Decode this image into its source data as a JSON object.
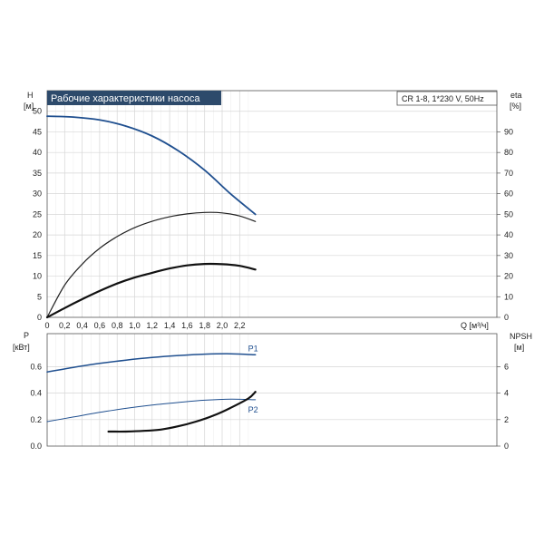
{
  "chart_data": [
    {
      "type": "line",
      "title": "Рабочие характеристики насоса",
      "model_label": "CR 1-8, 1*230 V, 50Hz",
      "xlabel": "Q [м³/ч]",
      "ylabel_left": "H",
      "ylabel_left_unit": "[м]",
      "ylabel_right": "eta",
      "ylabel_right_unit": "[%]",
      "xlim": [
        0,
        2.4
      ],
      "ylim_left": [
        0,
        55
      ],
      "ylim_right": [
        0,
        110
      ],
      "x_ticks": [
        "0",
        "0,2",
        "0,4",
        "0,6",
        "0,8",
        "1,0",
        "1,2",
        "1,4",
        "1,6",
        "1,8",
        "2,0",
        "2,2"
      ],
      "y_ticks_left": [
        "0",
        "5",
        "10",
        "15",
        "20",
        "25",
        "30",
        "35",
        "40",
        "45",
        "50"
      ],
      "y_ticks_right": [
        "0",
        "10",
        "20",
        "30",
        "40",
        "50",
        "60",
        "70",
        "80",
        "90"
      ],
      "grid": true,
      "series": [
        {
          "axis": "left",
          "color": "#1f4f8f",
          "x": [
            0,
            0.3,
            0.6,
            0.9,
            1.2,
            1.5,
            1.8,
            2.1,
            2.4
          ],
          "y": [
            48.8,
            48.6,
            47.9,
            46.4,
            44.0,
            40.4,
            35.7,
            29.9,
            25.0
          ]
        },
        {
          "axis": "right",
          "color": "#222222",
          "x": [
            0,
            0.2,
            0.4,
            0.6,
            0.8,
            1.0,
            1.2,
            1.4,
            1.6,
            1.8,
            2.0,
            2.2,
            2.4
          ],
          "y": [
            0,
            15.6,
            25.8,
            33.5,
            39.2,
            43.5,
            46.6,
            48.8,
            50.2,
            50.9,
            50.7,
            49.2,
            46.5
          ]
        },
        {
          "axis": "right",
          "color": "#111111",
          "x": [
            0,
            0.2,
            0.4,
            0.6,
            0.8,
            1.0,
            1.2,
            1.4,
            1.6,
            1.8,
            2.0,
            2.2,
            2.4
          ],
          "y": [
            0,
            4.5,
            8.8,
            12.8,
            16.4,
            19.3,
            21.6,
            23.7,
            25.2,
            25.9,
            25.8,
            25.0,
            23.2
          ]
        }
      ]
    },
    {
      "type": "line",
      "xlim": [
        0,
        2.4
      ],
      "ylabel_left": "P",
      "ylabel_left_unit": "[кВт]",
      "ylabel_right": "NPSH",
      "ylabel_right_unit": "[м]",
      "ylim_left": [
        0,
        0.85
      ],
      "ylim_right": [
        0,
        8.5
      ],
      "y_ticks_left": [
        "0.0",
        "0.2",
        "0.4",
        "0.6"
      ],
      "y_ticks_right": [
        "0",
        "2",
        "4",
        "6"
      ],
      "grid": true,
      "series": [
        {
          "name": "P1",
          "axis": "left",
          "color": "#1f4f8f",
          "x": [
            0,
            0.3,
            0.6,
            0.9,
            1.2,
            1.5,
            1.8,
            2.1,
            2.4
          ],
          "y": [
            0.56,
            0.595,
            0.625,
            0.65,
            0.67,
            0.685,
            0.695,
            0.698,
            0.69
          ]
        },
        {
          "name": "P2",
          "axis": "left",
          "color": "#1f4f8f",
          "x": [
            0,
            0.3,
            0.6,
            0.9,
            1.2,
            1.5,
            1.8,
            2.1,
            2.4
          ],
          "y": [
            0.185,
            0.22,
            0.255,
            0.285,
            0.31,
            0.33,
            0.347,
            0.355,
            0.35
          ]
        },
        {
          "axis": "right",
          "color": "#111111",
          "x": [
            0.7,
            0.9,
            1.1,
            1.3,
            1.5,
            1.7,
            1.9,
            2.1,
            2.3,
            2.4
          ],
          "y": [
            1.1,
            1.1,
            1.15,
            1.25,
            1.5,
            1.85,
            2.3,
            2.9,
            3.6,
            4.1
          ]
        }
      ]
    }
  ]
}
